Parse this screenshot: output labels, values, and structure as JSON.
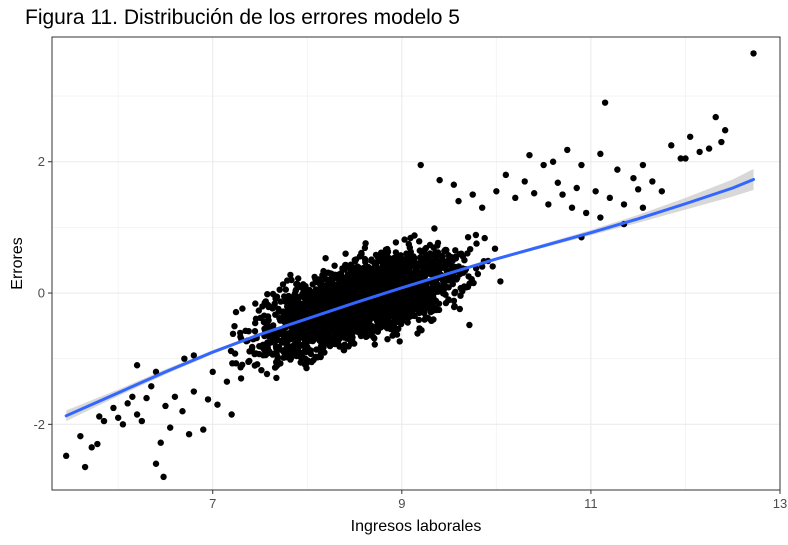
{
  "chart_data": {
    "type": "scatter",
    "title": "Figura 11. Distribución de los errores modelo 5",
    "xlabel": "Ingresos laborales",
    "ylabel": "Errores",
    "xlim": [
      5.3,
      13.0
    ],
    "ylim": [
      -3.0,
      3.9
    ],
    "x_ticks": [
      7,
      9,
      11,
      13
    ],
    "x_tick_labels": [
      "7",
      "9",
      "11",
      "13"
    ],
    "y_ticks": [
      -2,
      0,
      2
    ],
    "y_tick_labels": [
      "-2",
      "0",
      "2"
    ],
    "x_minor": [
      6,
      8,
      10,
      12
    ],
    "y_minor": [
      -3,
      -1,
      1,
      3
    ],
    "grid": true,
    "point_color": "#000000",
    "smooth_color": "#3366FF",
    "band_color": "#C8C8C8",
    "smooth_line": {
      "x": [
        5.45,
        6.0,
        6.5,
        7.0,
        7.5,
        8.0,
        8.5,
        9.0,
        9.5,
        10.0,
        10.5,
        11.0,
        11.5,
        12.0,
        12.5,
        12.72
      ],
      "y": [
        -1.87,
        -1.52,
        -1.2,
        -0.9,
        -0.63,
        -0.39,
        -0.15,
        0.08,
        0.3,
        0.52,
        0.72,
        0.92,
        1.13,
        1.36,
        1.6,
        1.73
      ],
      "band": [
        0.08,
        0.05,
        0.04,
        0.03,
        0.02,
        0.02,
        0.02,
        0.02,
        0.02,
        0.02,
        0.03,
        0.04,
        0.06,
        0.09,
        0.13,
        0.16
      ]
    },
    "points": [
      [
        5.45,
        -2.48
      ],
      [
        5.6,
        -2.18
      ],
      [
        5.65,
        -2.65
      ],
      [
        5.72,
        -2.35
      ],
      [
        5.78,
        -2.3
      ],
      [
        5.8,
        -1.88
      ],
      [
        5.85,
        -1.95
      ],
      [
        5.95,
        -1.75
      ],
      [
        6.0,
        -1.9
      ],
      [
        6.05,
        -2.0
      ],
      [
        6.1,
        -1.68
      ],
      [
        6.15,
        -1.58
      ],
      [
        6.2,
        -1.85
      ],
      [
        6.25,
        -1.95
      ],
      [
        6.3,
        -1.6
      ],
      [
        6.35,
        -1.42
      ],
      [
        6.4,
        -2.6
      ],
      [
        6.45,
        -2.28
      ],
      [
        6.48,
        -2.8
      ],
      [
        6.5,
        -1.72
      ],
      [
        6.55,
        -2.05
      ],
      [
        6.6,
        -1.58
      ],
      [
        6.68,
        -1.8
      ],
      [
        6.75,
        -2.15
      ],
      [
        6.8,
        -1.5
      ],
      [
        6.9,
        -2.08
      ],
      [
        6.95,
        -1.62
      ],
      [
        7.05,
        -1.7
      ],
      [
        7.15,
        -1.35
      ],
      [
        6.2,
        -1.1
      ],
      [
        6.7,
        -1.0
      ],
      [
        6.8,
        -0.95
      ],
      [
        7.2,
        -1.85
      ],
      [
        7.0,
        -1.2
      ],
      [
        7.3,
        -1.3
      ],
      [
        6.4,
        -1.2
      ],
      [
        9.2,
        1.95
      ],
      [
        9.4,
        1.72
      ],
      [
        9.55,
        1.65
      ],
      [
        9.6,
        1.4
      ],
      [
        9.75,
        1.5
      ],
      [
        9.85,
        1.3
      ],
      [
        10.0,
        1.55
      ],
      [
        10.1,
        1.8
      ],
      [
        10.2,
        1.45
      ],
      [
        10.3,
        1.7
      ],
      [
        10.35,
        2.1
      ],
      [
        10.4,
        1.52
      ],
      [
        10.5,
        1.95
      ],
      [
        10.55,
        1.35
      ],
      [
        10.6,
        2.0
      ],
      [
        10.65,
        1.68
      ],
      [
        10.7,
        1.5
      ],
      [
        10.75,
        2.18
      ],
      [
        10.8,
        1.3
      ],
      [
        10.85,
        1.6
      ],
      [
        10.9,
        1.95
      ],
      [
        10.95,
        1.22
      ],
      [
        11.05,
        1.55
      ],
      [
        11.1,
        2.12
      ],
      [
        11.15,
        2.9
      ],
      [
        11.2,
        1.45
      ],
      [
        11.28,
        1.88
      ],
      [
        11.35,
        1.35
      ],
      [
        11.45,
        1.75
      ],
      [
        11.5,
        1.58
      ],
      [
        11.55,
        1.95
      ],
      [
        11.65,
        1.7
      ],
      [
        11.75,
        1.55
      ],
      [
        11.85,
        2.25
      ],
      [
        11.95,
        2.05
      ],
      [
        12.05,
        2.38
      ],
      [
        12.15,
        2.15
      ],
      [
        12.25,
        2.2
      ],
      [
        12.32,
        2.68
      ],
      [
        12.38,
        2.3
      ],
      [
        12.42,
        2.48
      ],
      [
        12.72,
        3.65
      ],
      [
        11.35,
        1.05
      ],
      [
        10.9,
        0.85
      ],
      [
        11.1,
        1.15
      ],
      [
        11.55,
        1.3
      ],
      [
        12.0,
        2.05
      ]
    ]
  }
}
